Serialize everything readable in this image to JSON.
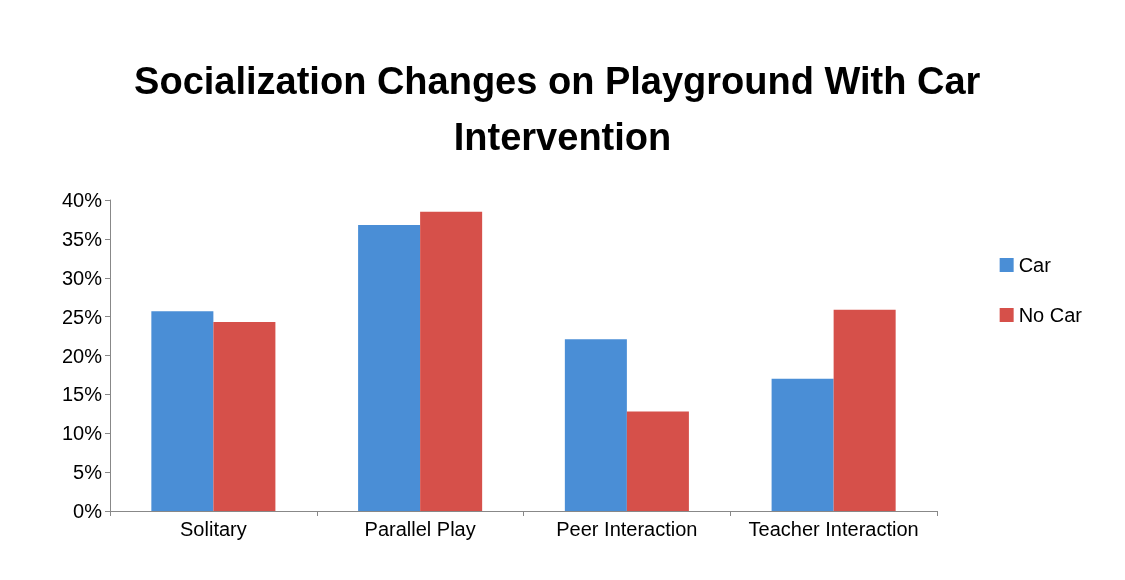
{
  "chart_data": {
    "type": "bar",
    "title": "Socialization Changes on Playground With Car Intervention",
    "categories": [
      "Solitary",
      "Parallel Play",
      "Peer Interaction",
      "Teacher Interaction"
    ],
    "series": [
      {
        "name": "Car",
        "color": "#4a8ed6",
        "values": [
          25.7,
          36.8,
          22.1,
          17.0
        ]
      },
      {
        "name": "No Car",
        "color": "#d6504a",
        "values": [
          24.3,
          38.5,
          12.8,
          25.9
        ]
      }
    ],
    "ylim": [
      0,
      40
    ],
    "yticks": [
      {
        "value": 0,
        "label": "0%"
      },
      {
        "value": 5,
        "label": "5%"
      },
      {
        "value": 10,
        "label": "10%"
      },
      {
        "value": 15,
        "label": "15%"
      },
      {
        "value": 20,
        "label": "20%"
      },
      {
        "value": 25,
        "label": "25%"
      },
      {
        "value": 30,
        "label": "30%"
      },
      {
        "value": 35,
        "label": "35%"
      },
      {
        "value": 40,
        "label": "40%"
      }
    ],
    "grid": false,
    "legend": "right"
  }
}
